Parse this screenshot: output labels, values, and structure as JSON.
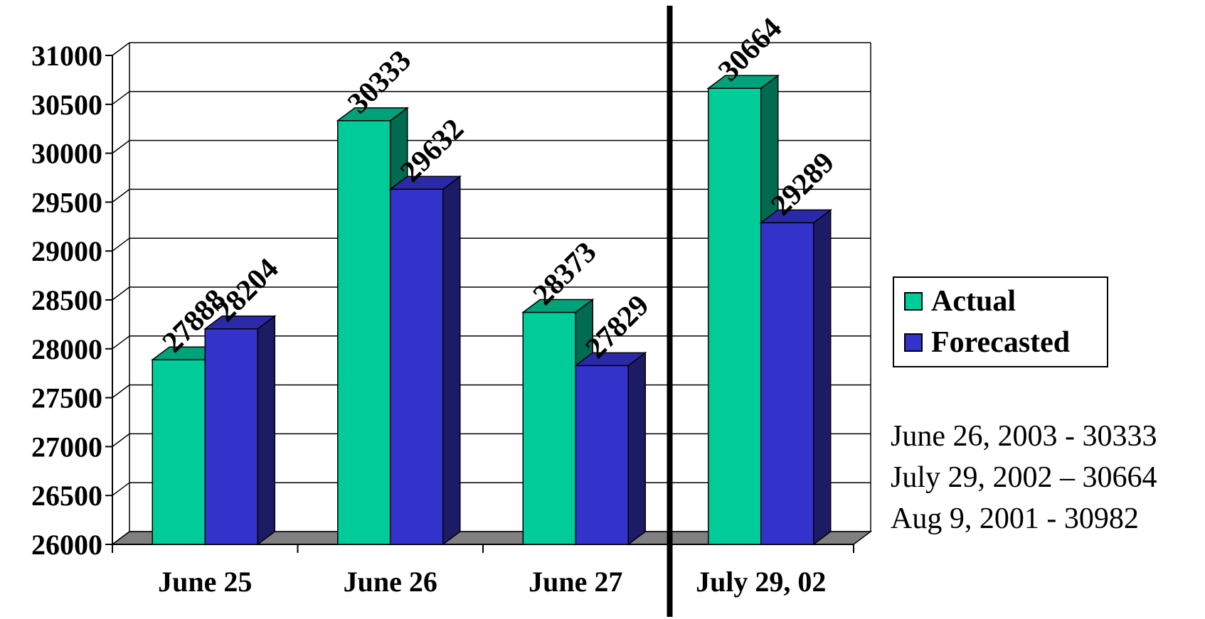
{
  "chart_data": {
    "type": "bar",
    "categories": [
      "June 25",
      "June 26",
      "June 27",
      "July 29, 02"
    ],
    "series": [
      {
        "name": "Actual",
        "values": [
          27888,
          30333,
          28373,
          30664
        ],
        "color": "#00CC99",
        "side_color": "#006B50",
        "top_color": "#00A27A"
      },
      {
        "name": "Forecasted",
        "values": [
          28204,
          29632,
          27829,
          29289
        ],
        "color": "#3333CC",
        "side_color": "#1C1C66",
        "top_color": "#2A2AA8"
      }
    ],
    "y_ticks": [
      "26000",
      "26500",
      "27000",
      "27500",
      "28000",
      "28500",
      "29000",
      "29500",
      "30000",
      "30500",
      "31000"
    ],
    "ylim": [
      26000,
      31000
    ],
    "grid": true,
    "legend_position": "right",
    "title": "",
    "xlabel": "",
    "ylabel": ""
  },
  "legend": {
    "items": [
      {
        "label": "Actual",
        "color": "#00CC99"
      },
      {
        "label": "Forecasted",
        "color": "#3333CC"
      }
    ]
  },
  "notes": [
    "June 26, 2003 - 30333",
    "July 29, 2002 – 30664",
    "Aug 9, 2001 - 30982"
  ]
}
